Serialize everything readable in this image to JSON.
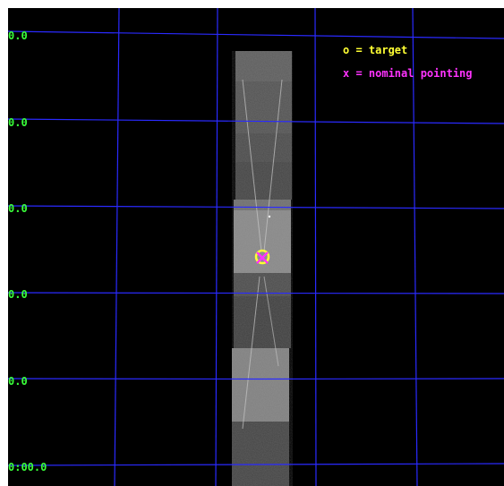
{
  "legend": {
    "target_text": "o = target",
    "pointing_text": "x = nominal pointing",
    "target_color": "#ffff33",
    "pointing_color": "#ff33ff"
  },
  "y_tick_labels": [
    "0.0",
    "0.0",
    "0.0",
    "0.0",
    "0.0",
    "0:00.0"
  ],
  "colors": {
    "background": "#000000",
    "grid": "#2a2aff",
    "tick_text": "#39ff39",
    "frame": "#ffffff"
  },
  "markers": {
    "target_icon": "target-circle-icon",
    "pointing_icon": "nominal-pointing-x-icon"
  }
}
